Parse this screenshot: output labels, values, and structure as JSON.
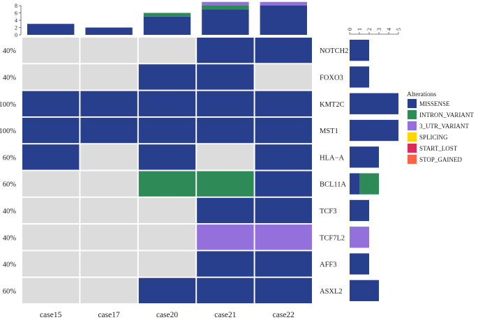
{
  "chart_data": {
    "type": "oncoprint",
    "samples": [
      "case15",
      "case17",
      "case20",
      "case21",
      "case22"
    ],
    "genes": [
      "NOTCH2",
      "FOXO3",
      "KMT2C",
      "MST1",
      "HLA−A",
      "BCL11A",
      "TCF3",
      "TCF7L2",
      "AFF3",
      "ASXL2"
    ],
    "percentages": [
      "40%",
      "40%",
      "100%",
      "100%",
      "60%",
      "60%",
      "40%",
      "40%",
      "40%",
      "60%"
    ],
    "legend_title": "Alterations",
    "alteration_types": [
      "MISSENSE",
      "INTRON_VARIANT",
      "3_UTR_VARIANT",
      "SPLICING",
      "START_LOST",
      "STOP_GAINED"
    ],
    "colors": {
      "MISSENSE": "#283F8E",
      "INTRON_VARIANT": "#2E8B57",
      "3_UTR_VARIANT": "#9370DB",
      "SPLICING": "#FFD700",
      "START_LOST": "#DC2B5A",
      "STOP_GAINED": "#FF6347",
      "background": "#DCDCDC"
    },
    "matrix": [
      [
        [],
        [],
        [],
        [
          "MISSENSE"
        ],
        [
          "MISSENSE"
        ]
      ],
      [
        [],
        [],
        [
          "MISSENSE"
        ],
        [
          "MISSENSE"
        ],
        []
      ],
      [
        [
          "MISSENSE"
        ],
        [
          "MISSENSE"
        ],
        [
          "MISSENSE"
        ],
        [
          "MISSENSE"
        ],
        [
          "MISSENSE"
        ]
      ],
      [
        [
          "MISSENSE"
        ],
        [
          "MISSENSE"
        ],
        [
          "MISSENSE"
        ],
        [
          "MISSENSE"
        ],
        [
          "MISSENSE"
        ]
      ],
      [
        [
          "MISSENSE"
        ],
        [],
        [
          "MISSENSE"
        ],
        [],
        [
          "MISSENSE"
        ]
      ],
      [
        [],
        [],
        [
          "INTRON_VARIANT"
        ],
        [
          "INTRON_VARIANT"
        ],
        [
          "MISSENSE"
        ]
      ],
      [
        [],
        [],
        [],
        [
          "MISSENSE"
        ],
        [
          "MISSENSE"
        ]
      ],
      [
        [],
        [],
        [],
        [
          "3_UTR_VARIANT"
        ],
        [
          "3_UTR_VARIANT"
        ]
      ],
      [
        [],
        [],
        [],
        [
          "MISSENSE"
        ],
        [
          "MISSENSE"
        ]
      ],
      [
        [],
        [],
        [
          "MISSENSE"
        ],
        [
          "MISSENSE"
        ],
        [
          "MISSENSE"
        ]
      ]
    ],
    "top_bar": {
      "axis_ticks": [
        0,
        2,
        4,
        6,
        8
      ],
      "ylim": [
        0,
        8
      ],
      "stacks": [
        [
          {
            "type": "MISSENSE",
            "value": 3
          }
        ],
        [
          {
            "type": "MISSENSE",
            "value": 2
          }
        ],
        [
          {
            "type": "MISSENSE",
            "value": 5
          },
          {
            "type": "INTRON_VARIANT",
            "value": 1
          }
        ],
        [
          {
            "type": "MISSENSE",
            "value": 7
          },
          {
            "type": "INTRON_VARIANT",
            "value": 1
          },
          {
            "type": "3_UTR_VARIANT",
            "value": 1
          }
        ],
        [
          {
            "type": "MISSENSE",
            "value": 8
          },
          {
            "type": "3_UTR_VARIANT",
            "value": 1
          }
        ]
      ]
    },
    "right_bar": {
      "axis_ticks": [
        0,
        1,
        2,
        3,
        4,
        5
      ],
      "xlim": [
        0,
        5
      ],
      "stacks": [
        [
          {
            "type": "MISSENSE",
            "value": 2
          }
        ],
        [
          {
            "type": "MISSENSE",
            "value": 2
          }
        ],
        [
          {
            "type": "MISSENSE",
            "value": 5
          }
        ],
        [
          {
            "type": "MISSENSE",
            "value": 5
          }
        ],
        [
          {
            "type": "MISSENSE",
            "value": 3
          }
        ],
        [
          {
            "type": "MISSENSE",
            "value": 1
          },
          {
            "type": "INTRON_VARIANT",
            "value": 2
          }
        ],
        [
          {
            "type": "MISSENSE",
            "value": 2
          }
        ],
        [
          {
            "type": "3_UTR_VARIANT",
            "value": 2
          }
        ],
        [
          {
            "type": "MISSENSE",
            "value": 2
          }
        ],
        [
          {
            "type": "MISSENSE",
            "value": 3
          }
        ]
      ]
    }
  }
}
